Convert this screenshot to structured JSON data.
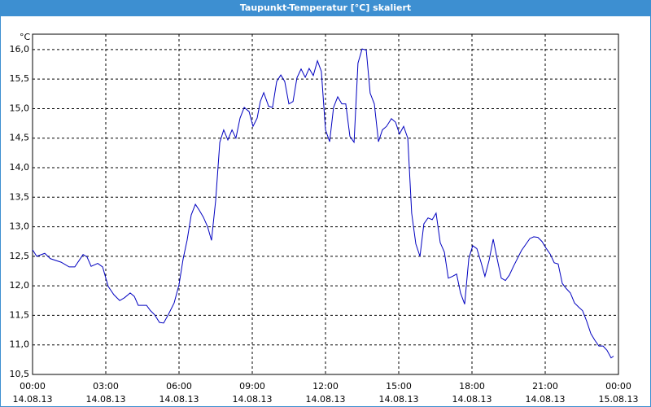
{
  "chart_data": {
    "type": "line",
    "title": "Taupunkt-Temperatur [°C] skaliert",
    "y_label": "°C",
    "xlim": [
      0,
      24
    ],
    "ylim": [
      10.5,
      16.26
    ],
    "xticks": [
      {
        "value": 0,
        "label": "00:00",
        "date": "14.08.13"
      },
      {
        "value": 3,
        "label": "03:00",
        "date": "14.08.13"
      },
      {
        "value": 6,
        "label": "06:00",
        "date": "14.08.13"
      },
      {
        "value": 9,
        "label": "09:00",
        "date": "14.08.13"
      },
      {
        "value": 12,
        "label": "12:00",
        "date": "14.08.13"
      },
      {
        "value": 15,
        "label": "15:00",
        "date": "14.08.13"
      },
      {
        "value": 18,
        "label": "18:00",
        "date": "14.08.13"
      },
      {
        "value": 21,
        "label": "21:00",
        "date": "14.08.13"
      },
      {
        "value": 24,
        "label": "00:00",
        "date": "15.08.13"
      }
    ],
    "yticks": [
      {
        "value": 10.5,
        "label": "10,5"
      },
      {
        "value": 11,
        "label": "11,0"
      },
      {
        "value": 11.5,
        "label": "11,5"
      },
      {
        "value": 12,
        "label": "12,0"
      },
      {
        "value": 12.5,
        "label": "12,5"
      },
      {
        "value": 13,
        "label": "13,0"
      },
      {
        "value": 13.5,
        "label": "13,5"
      },
      {
        "value": 14,
        "label": "14,0"
      },
      {
        "value": 14.5,
        "label": "14,5"
      },
      {
        "value": 15,
        "label": "15,0"
      },
      {
        "value": 15.5,
        "label": "15,5"
      },
      {
        "value": 16,
        "label": "16,0"
      }
    ],
    "grid": true,
    "color": "#0000c0",
    "x": [
      0,
      0.17,
      0.5,
      0.73,
      1.17,
      1.5,
      1.73,
      2.07,
      2.23,
      2.4,
      2.67,
      2.87,
      3.1,
      3.33,
      3.57,
      3.77,
      4,
      4.17,
      4.33,
      4.67,
      4.83,
      5,
      5.2,
      5.37,
      5.57,
      5.8,
      6,
      6.17,
      6.33,
      6.5,
      6.67,
      6.83,
      7,
      7.17,
      7.33,
      7.5,
      7.67,
      7.83,
      8,
      8.17,
      8.33,
      8.5,
      8.67,
      8.87,
      9.03,
      9.2,
      9.33,
      9.47,
      9.67,
      9.83,
      10,
      10.17,
      10.33,
      10.5,
      10.67,
      10.83,
      11,
      11.17,
      11.33,
      11.5,
      11.67,
      11.83,
      12,
      12.17,
      12.33,
      12.5,
      12.67,
      12.83,
      13,
      13.17,
      13.33,
      13.5,
      13.67,
      13.83,
      14,
      14.17,
      14.33,
      14.5,
      14.7,
      14.87,
      15.03,
      15.2,
      15.37,
      15.53,
      15.7,
      15.87,
      16.03,
      16.2,
      16.37,
      16.53,
      16.7,
      16.87,
      17.03,
      17.2,
      17.37,
      17.53,
      17.7,
      17.87,
      18.03,
      18.2,
      18.37,
      18.53,
      18.7,
      18.87,
      19.03,
      19.2,
      19.37,
      19.53,
      19.7,
      20.03,
      20.37,
      20.53,
      20.7,
      20.87,
      21.03,
      21.2,
      21.37,
      21.53,
      21.7,
      21.87,
      22.03,
      22.2,
      22.37,
      22.53,
      22.7,
      22.87,
      23.03,
      23.2,
      23.37,
      23.53,
      23.7,
      23.8
    ],
    "values": [
      12.61,
      12.5,
      12.55,
      12.46,
      12.4,
      12.32,
      12.32,
      12.53,
      12.49,
      12.33,
      12.38,
      12.32,
      11.99,
      11.85,
      11.75,
      11.8,
      11.88,
      11.82,
      11.67,
      11.67,
      11.58,
      11.51,
      11.38,
      11.37,
      11.52,
      11.71,
      12.02,
      12.46,
      12.77,
      13.2,
      13.38,
      13.28,
      13.16,
      13.0,
      12.77,
      13.44,
      14.43,
      14.64,
      14.47,
      14.64,
      14.5,
      14.84,
      15.02,
      14.95,
      14.7,
      14.84,
      15.12,
      15.27,
      15.04,
      15.02,
      15.46,
      15.57,
      15.46,
      15.08,
      15.12,
      15.52,
      15.67,
      15.53,
      15.68,
      15.56,
      15.81,
      15.63,
      14.64,
      14.44,
      15.02,
      15.2,
      15.08,
      15.08,
      14.53,
      14.43,
      15.77,
      16.01,
      15.99,
      15.26,
      15.08,
      14.44,
      14.64,
      14.7,
      14.83,
      14.77,
      14.57,
      14.7,
      14.5,
      13.23,
      12.71,
      12.5,
      13.05,
      13.15,
      13.12,
      13.23,
      12.73,
      12.57,
      12.13,
      12.16,
      12.2,
      11.88,
      11.69,
      12.46,
      12.68,
      12.63,
      12.4,
      12.16,
      12.43,
      12.79,
      12.46,
      12.13,
      12.09,
      12.18,
      12.33,
      12.6,
      12.8,
      12.83,
      12.82,
      12.75,
      12.64,
      12.54,
      12.39,
      12.37,
      12.04,
      11.95,
      11.88,
      11.71,
      11.64,
      11.58,
      11.4,
      11.19,
      11.08,
      10.98,
      10.98,
      10.91,
      10.78,
      10.81
    ]
  }
}
